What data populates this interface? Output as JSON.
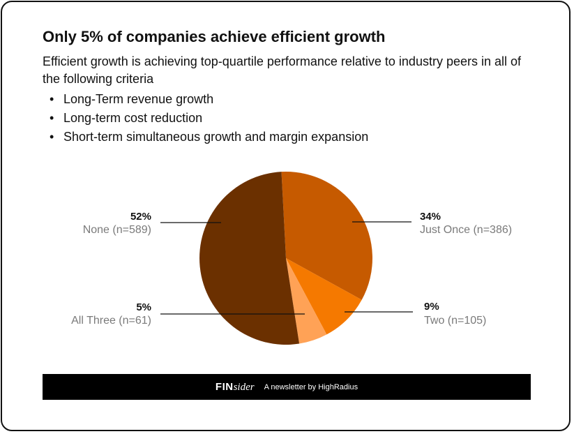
{
  "header": {
    "title": "Only 5% of companies achieve efficient growth",
    "subtitle": "Efficient growth is achieving top-quartile performance relative to industry peers in all of the following criteria",
    "bullets": [
      "Long-Term revenue growth",
      "Long-term cost reduction",
      "Short-term simultaneous growth and margin expansion"
    ],
    "bullet_glyph": "•"
  },
  "chart_data": {
    "type": "pie",
    "start_angle_deg": -3,
    "direction": "clockwise",
    "slices": [
      {
        "label": "Just Once",
        "n_label": "Just Once (n=386)",
        "percent_label": "34%",
        "value": 386,
        "color": "#C65A00"
      },
      {
        "label": "Two",
        "n_label": "Two (n=105)",
        "percent_label": "9%",
        "value": 105,
        "color": "#F57900"
      },
      {
        "label": "All Three",
        "n_label": "All Three (n=61)",
        "percent_label": "5%",
        "value": 61,
        "color": "#FFA256"
      },
      {
        "label": "None",
        "n_label": "None (n=589)",
        "percent_label": "52%",
        "value": 589,
        "color": "#6B3000"
      }
    ]
  },
  "footer": {
    "brand_bold": "FIN",
    "brand_italic": "sider",
    "tagline": "A newsletter by HighRadius"
  },
  "colors": {
    "text_dark": "#111111",
    "label_gray": "#7A7A7A",
    "footer_bg": "#000000"
  }
}
